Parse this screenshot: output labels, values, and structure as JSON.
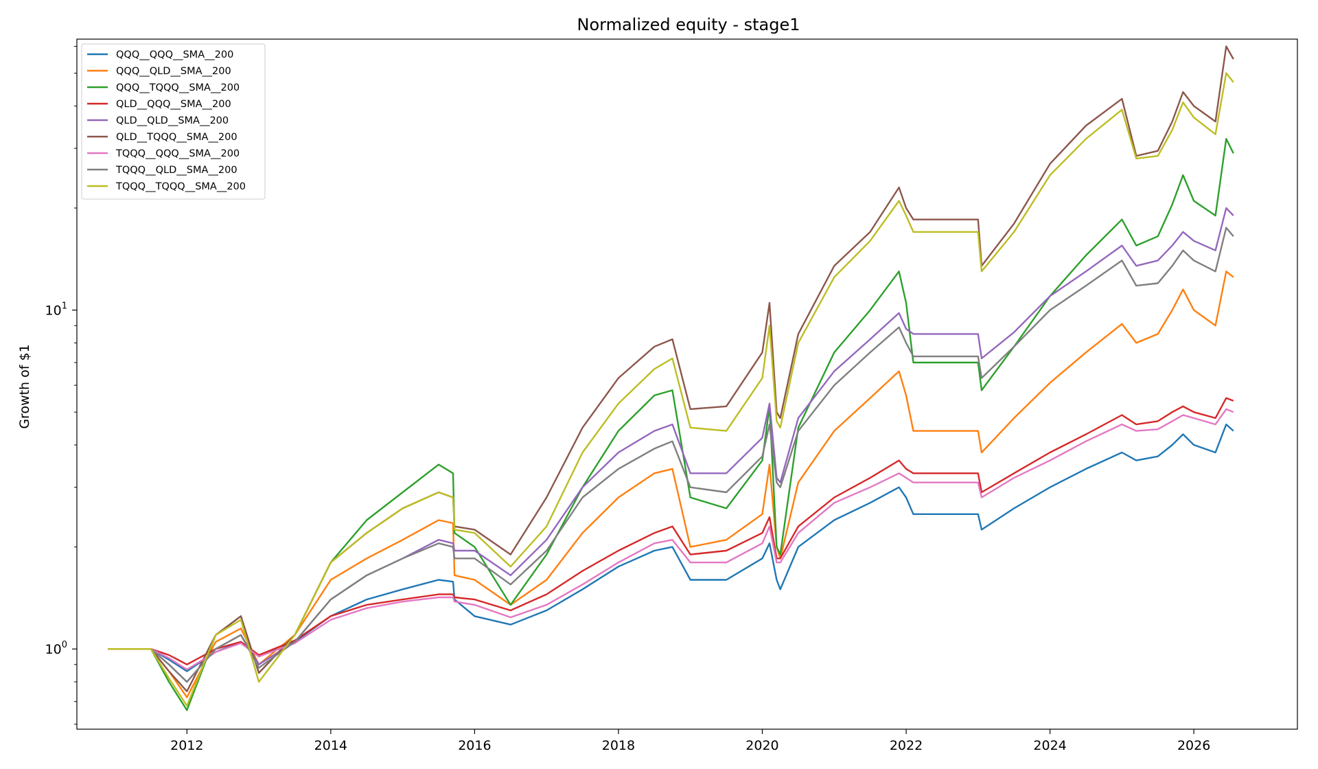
{
  "chart_data": {
    "type": "line",
    "title": "Normalized equity - stage1",
    "xlabel": "",
    "ylabel": "Growth of $1",
    "yscale": "log",
    "xlim": [
      2010.47,
      2027.44
    ],
    "ylim": [
      0.58,
      63
    ],
    "x_ticks": [
      2012,
      2014,
      2016,
      2018,
      2020,
      2022,
      2024,
      2026
    ],
    "x_tick_labels": [
      "2012",
      "2014",
      "2016",
      "2018",
      "2020",
      "2022",
      "2024",
      "2026"
    ],
    "y_tick_labels": [
      {
        "value": 1,
        "base": "10",
        "exp": "0"
      },
      {
        "value": 10,
        "base": "10",
        "exp": "1"
      }
    ],
    "grid": false,
    "legend": "top-left",
    "series": [
      {
        "name": "QQQ__QQQ__SMA__200",
        "color": "#1f77b4",
        "x": [
          2010.9,
          2011.5,
          2011.75,
          2012.0,
          2012.4,
          2012.75,
          2013.0,
          2013.5,
          2014.0,
          2014.5,
          2015.0,
          2015.5,
          2015.7,
          2015.72,
          2016.0,
          2016.5,
          2017.0,
          2017.5,
          2018.0,
          2018.5,
          2018.75,
          2019.0,
          2019.5,
          2020.0,
          2020.1,
          2020.2,
          2020.25,
          2020.5,
          2021.0,
          2021.5,
          2021.9,
          2022.0,
          2022.1,
          2023.0,
          2023.05,
          2023.5,
          2024.0,
          2024.5,
          2025.0,
          2025.2,
          2025.5,
          2025.7,
          2025.85,
          2026.0,
          2026.3,
          2026.45,
          2026.55
        ],
        "values": [
          1.0,
          1.0,
          0.93,
          0.86,
          0.98,
          1.05,
          0.95,
          1.05,
          1.25,
          1.4,
          1.5,
          1.6,
          1.58,
          1.4,
          1.25,
          1.18,
          1.3,
          1.5,
          1.75,
          1.95,
          2.0,
          1.6,
          1.6,
          1.85,
          2.05,
          1.6,
          1.5,
          2.0,
          2.4,
          2.7,
          3.0,
          2.8,
          2.5,
          2.5,
          2.25,
          2.6,
          3.0,
          3.4,
          3.8,
          3.6,
          3.7,
          4.0,
          4.3,
          4.0,
          3.8,
          4.6,
          4.4
        ]
      },
      {
        "name": "QQQ__QLD__SMA__200",
        "color": "#ff7f0e",
        "x": [
          2010.9,
          2011.5,
          2011.75,
          2012.0,
          2012.4,
          2012.75,
          2013.0,
          2013.5,
          2014.0,
          2014.5,
          2015.0,
          2015.5,
          2015.7,
          2015.72,
          2016.0,
          2016.5,
          2017.0,
          2017.5,
          2018.0,
          2018.5,
          2018.75,
          2019.0,
          2019.5,
          2020.0,
          2020.1,
          2020.2,
          2020.25,
          2020.5,
          2021.0,
          2021.5,
          2021.9,
          2022.0,
          2022.1,
          2023.0,
          2023.05,
          2023.5,
          2024.0,
          2024.5,
          2025.0,
          2025.2,
          2025.5,
          2025.7,
          2025.85,
          2026.0,
          2026.3,
          2026.45,
          2026.55
        ],
        "values": [
          1.0,
          1.0,
          0.86,
          0.72,
          1.05,
          1.15,
          0.9,
          1.1,
          1.6,
          1.85,
          2.1,
          2.4,
          2.35,
          1.65,
          1.6,
          1.35,
          1.6,
          2.2,
          2.8,
          3.3,
          3.4,
          2.0,
          2.1,
          2.5,
          3.5,
          2.0,
          1.85,
          3.1,
          4.4,
          5.5,
          6.6,
          5.6,
          4.4,
          4.4,
          3.8,
          4.8,
          6.1,
          7.5,
          9.1,
          8.0,
          8.5,
          10.0,
          11.5,
          10.0,
          9.0,
          13.0,
          12.5
        ]
      },
      {
        "name": "QQQ__TQQQ__SMA__200",
        "color": "#2ca02c",
        "x": [
          2010.9,
          2011.5,
          2011.75,
          2012.0,
          2012.4,
          2012.75,
          2013.0,
          2013.5,
          2014.0,
          2014.5,
          2015.0,
          2015.5,
          2015.7,
          2015.72,
          2016.0,
          2016.5,
          2017.0,
          2017.5,
          2018.0,
          2018.5,
          2018.75,
          2019.0,
          2019.5,
          2020.0,
          2020.1,
          2020.2,
          2020.25,
          2020.5,
          2021.0,
          2021.5,
          2021.9,
          2022.0,
          2022.1,
          2023.0,
          2023.05,
          2023.5,
          2024.0,
          2024.5,
          2025.0,
          2025.2,
          2025.5,
          2025.7,
          2025.85,
          2026.0,
          2026.3,
          2026.45,
          2026.55
        ],
        "values": [
          1.0,
          1.0,
          0.8,
          0.66,
          1.1,
          1.25,
          0.85,
          1.1,
          1.8,
          2.4,
          2.9,
          3.5,
          3.3,
          2.2,
          2.0,
          1.35,
          1.9,
          3.0,
          4.4,
          5.6,
          5.8,
          2.8,
          2.6,
          3.6,
          5.2,
          2.0,
          1.9,
          4.5,
          7.5,
          10.0,
          13.0,
          10.5,
          7.0,
          7.0,
          5.8,
          7.8,
          11.0,
          14.5,
          18.5,
          15.5,
          16.5,
          20.5,
          25.0,
          21.0,
          19.0,
          32.0,
          29.0
        ]
      },
      {
        "name": "QLD__QQQ__SMA__200",
        "color": "#d62728",
        "x": [
          2010.9,
          2011.5,
          2011.75,
          2012.0,
          2012.4,
          2012.75,
          2013.0,
          2013.5,
          2014.0,
          2014.5,
          2015.0,
          2015.5,
          2015.7,
          2015.72,
          2016.0,
          2016.5,
          2017.0,
          2017.5,
          2018.0,
          2018.5,
          2018.75,
          2019.0,
          2019.5,
          2020.0,
          2020.1,
          2020.2,
          2020.25,
          2020.5,
          2021.0,
          2021.5,
          2021.9,
          2022.0,
          2022.1,
          2023.0,
          2023.05,
          2023.5,
          2024.0,
          2024.5,
          2025.0,
          2025.2,
          2025.5,
          2025.7,
          2025.85,
          2026.0,
          2026.3,
          2026.45,
          2026.55
        ],
        "values": [
          1.0,
          1.0,
          0.96,
          0.9,
          1.0,
          1.05,
          0.96,
          1.06,
          1.25,
          1.35,
          1.4,
          1.45,
          1.45,
          1.42,
          1.4,
          1.3,
          1.45,
          1.7,
          1.95,
          2.2,
          2.3,
          1.9,
          1.95,
          2.2,
          2.45,
          1.85,
          1.85,
          2.3,
          2.8,
          3.2,
          3.6,
          3.4,
          3.3,
          3.3,
          2.9,
          3.3,
          3.8,
          4.3,
          4.9,
          4.6,
          4.7,
          5.0,
          5.2,
          5.0,
          4.8,
          5.5,
          5.4
        ]
      },
      {
        "name": "QLD__QLD__SMA__200",
        "color": "#9467bd",
        "x": [
          2010.9,
          2011.5,
          2011.75,
          2012.0,
          2012.4,
          2012.75,
          2013.0,
          2013.5,
          2014.0,
          2014.5,
          2015.0,
          2015.5,
          2015.7,
          2015.72,
          2016.0,
          2016.5,
          2017.0,
          2017.5,
          2018.0,
          2018.5,
          2018.75,
          2019.0,
          2019.5,
          2020.0,
          2020.1,
          2020.2,
          2020.25,
          2020.5,
          2021.0,
          2021.5,
          2021.9,
          2022.0,
          2022.1,
          2023.0,
          2023.05,
          2023.5,
          2024.0,
          2024.5,
          2025.0,
          2025.2,
          2025.5,
          2025.7,
          2025.85,
          2026.0,
          2026.3,
          2026.45,
          2026.55
        ],
        "values": [
          1.0,
          1.0,
          0.9,
          0.8,
          1.0,
          1.1,
          0.9,
          1.05,
          1.4,
          1.65,
          1.85,
          2.1,
          2.05,
          1.95,
          1.95,
          1.65,
          2.1,
          3.0,
          3.8,
          4.4,
          4.6,
          3.3,
          3.3,
          4.2,
          5.3,
          3.2,
          3.1,
          4.8,
          6.6,
          8.2,
          9.8,
          8.8,
          8.5,
          8.5,
          7.2,
          8.6,
          11.0,
          13.0,
          15.5,
          13.5,
          14.0,
          15.5,
          17.0,
          16.0,
          15.0,
          20.0,
          19.0
        ]
      },
      {
        "name": "QLD__TQQQ__SMA__200",
        "color": "#8c564b",
        "x": [
          2010.9,
          2011.5,
          2011.75,
          2012.0,
          2012.4,
          2012.75,
          2013.0,
          2013.5,
          2014.0,
          2014.5,
          2015.0,
          2015.5,
          2015.7,
          2015.72,
          2016.0,
          2016.5,
          2017.0,
          2017.5,
          2018.0,
          2018.5,
          2018.75,
          2019.0,
          2019.5,
          2020.0,
          2020.1,
          2020.2,
          2020.25,
          2020.5,
          2021.0,
          2021.5,
          2021.9,
          2022.0,
          2022.1,
          2023.0,
          2023.05,
          2023.5,
          2024.0,
          2024.5,
          2025.0,
          2025.2,
          2025.5,
          2025.7,
          2025.85,
          2026.0,
          2026.3,
          2026.45,
          2026.55
        ],
        "values": [
          1.0,
          1.0,
          0.86,
          0.75,
          1.1,
          1.25,
          0.85,
          1.1,
          1.8,
          2.2,
          2.6,
          2.9,
          2.8,
          2.3,
          2.25,
          1.9,
          2.8,
          4.5,
          6.3,
          7.8,
          8.2,
          5.1,
          5.2,
          7.5,
          10.5,
          5.0,
          4.8,
          8.5,
          13.5,
          17.0,
          23.0,
          20.0,
          18.5,
          18.5,
          13.5,
          18.0,
          27.0,
          35.0,
          42.0,
          28.5,
          29.5,
          36.0,
          44.0,
          40.0,
          36.0,
          60.0,
          55.0
        ]
      },
      {
        "name": "TQQQ__QQQ__SMA__200",
        "color": "#e377c2",
        "x": [
          2010.9,
          2011.5,
          2011.75,
          2012.0,
          2012.4,
          2012.75,
          2013.0,
          2013.5,
          2014.0,
          2014.5,
          2015.0,
          2015.5,
          2015.7,
          2015.72,
          2016.0,
          2016.5,
          2017.0,
          2017.5,
          2018.0,
          2018.5,
          2018.75,
          2019.0,
          2019.5,
          2020.0,
          2020.1,
          2020.2,
          2020.25,
          2020.5,
          2021.0,
          2021.5,
          2021.9,
          2022.0,
          2022.1,
          2023.0,
          2023.05,
          2023.5,
          2024.0,
          2024.5,
          2025.0,
          2025.2,
          2025.5,
          2025.7,
          2025.85,
          2026.0,
          2026.3,
          2026.45,
          2026.55
        ],
        "values": [
          1.0,
          1.0,
          0.94,
          0.87,
          0.98,
          1.04,
          0.95,
          1.04,
          1.22,
          1.32,
          1.38,
          1.42,
          1.42,
          1.38,
          1.35,
          1.24,
          1.35,
          1.55,
          1.8,
          2.05,
          2.1,
          1.8,
          1.8,
          2.05,
          2.3,
          1.8,
          1.8,
          2.2,
          2.7,
          3.0,
          3.3,
          3.2,
          3.1,
          3.1,
          2.8,
          3.2,
          3.6,
          4.1,
          4.6,
          4.4,
          4.45,
          4.7,
          4.9,
          4.8,
          4.6,
          5.1,
          5.0
        ]
      },
      {
        "name": "TQQQ__QLD__SMA__200",
        "color": "#7f7f7f",
        "x": [
          2010.9,
          2011.5,
          2011.75,
          2012.0,
          2012.4,
          2012.75,
          2013.0,
          2013.5,
          2014.0,
          2014.5,
          2015.0,
          2015.5,
          2015.7,
          2015.72,
          2016.0,
          2016.5,
          2017.0,
          2017.5,
          2018.0,
          2018.5,
          2018.75,
          2019.0,
          2019.5,
          2020.0,
          2020.1,
          2020.2,
          2020.25,
          2020.5,
          2021.0,
          2021.5,
          2021.9,
          2022.0,
          2022.1,
          2023.0,
          2023.05,
          2023.5,
          2024.0,
          2024.5,
          2025.0,
          2025.2,
          2025.5,
          2025.7,
          2025.85,
          2026.0,
          2026.3,
          2026.45,
          2026.55
        ],
        "values": [
          1.0,
          1.0,
          0.9,
          0.8,
          1.0,
          1.1,
          0.88,
          1.05,
          1.4,
          1.65,
          1.85,
          2.05,
          2.0,
          1.85,
          1.85,
          1.55,
          1.95,
          2.8,
          3.4,
          3.9,
          4.1,
          3.0,
          2.9,
          3.7,
          4.6,
          3.1,
          3.0,
          4.4,
          6.0,
          7.5,
          8.9,
          8.0,
          7.3,
          7.3,
          6.3,
          7.8,
          10.0,
          11.8,
          14.0,
          11.8,
          12.0,
          13.5,
          15.0,
          14.0,
          13.0,
          17.5,
          16.5
        ]
      },
      {
        "name": "TQQQ__TQQQ__SMA__200",
        "color": "#bcbd22",
        "x": [
          2010.9,
          2011.5,
          2011.75,
          2012.0,
          2012.4,
          2012.75,
          2013.0,
          2013.5,
          2014.0,
          2014.5,
          2015.0,
          2015.5,
          2015.7,
          2015.72,
          2016.0,
          2016.5,
          2017.0,
          2017.5,
          2018.0,
          2018.5,
          2018.75,
          2019.0,
          2019.5,
          2020.0,
          2020.1,
          2020.2,
          2020.25,
          2020.5,
          2021.0,
          2021.5,
          2021.9,
          2022.0,
          2022.1,
          2023.0,
          2023.05,
          2023.5,
          2024.0,
          2024.5,
          2025.0,
          2025.2,
          2025.5,
          2025.7,
          2025.85,
          2026.0,
          2026.3,
          2026.45,
          2026.55
        ],
        "values": [
          1.0,
          1.0,
          0.82,
          0.68,
          1.1,
          1.22,
          0.8,
          1.1,
          1.8,
          2.2,
          2.6,
          2.9,
          2.8,
          2.25,
          2.2,
          1.75,
          2.3,
          3.8,
          5.3,
          6.7,
          7.2,
          4.5,
          4.4,
          6.3,
          9.0,
          4.7,
          4.5,
          8.0,
          12.5,
          16.0,
          21.0,
          19.0,
          17.0,
          17.0,
          13.0,
          17.0,
          25.0,
          32.0,
          39.0,
          28.0,
          28.5,
          34.0,
          41.0,
          37.0,
          33.0,
          50.0,
          47.0
        ]
      }
    ]
  }
}
